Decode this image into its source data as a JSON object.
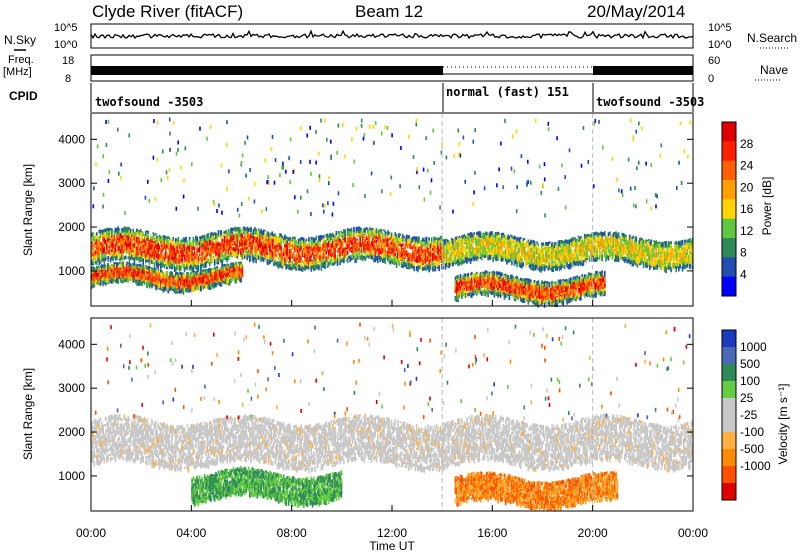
{
  "header": {
    "station": "Clyde River (fitACF)",
    "beam": "Beam 12",
    "date": "20/May/2014"
  },
  "nsky": {
    "label": "N.Sky",
    "tick_top": "10^5",
    "tick_bottom": "10^0",
    "right_label": "N.Search"
  },
  "freq": {
    "label": "Freq.",
    "unit": "[MHz]",
    "ticks_left": [
      "18",
      "8"
    ],
    "ticks_right": [
      "60",
      "0"
    ],
    "right_label": "Nave"
  },
  "cpid": {
    "label": "CPID",
    "segments": [
      {
        "name": "twofsound -3503",
        "start_h": 0,
        "end_h": 14
      },
      {
        "name": "normal (fast) 151",
        "start_h": 14,
        "end_h": 20
      },
      {
        "name": "twofsound -3503",
        "start_h": 20,
        "end_h": 24
      }
    ]
  },
  "colors": {
    "power": [
      "#0000ff",
      "#1f4fb0",
      "#2e8b57",
      "#5fc840",
      "#ffd400",
      "#ffa000",
      "#ff6000",
      "#ff2000",
      "#e00000"
    ],
    "velocity": [
      "#e00000",
      "#ff5000",
      "#ff8c00",
      "#ffb040",
      "#c8c8c8",
      "#c8c8c8",
      "#66cc44",
      "#2e8b57",
      "#4a6ab8",
      "#1c3ac0"
    ]
  },
  "chart_data": [
    {
      "type": "heatmap",
      "quantity": "Power",
      "xlabel": "",
      "ylabel": "Slant Range [km]",
      "xlim": [
        0,
        24
      ],
      "ylim": [
        200,
        4600
      ],
      "y_ticks": [
        1000,
        2000,
        3000,
        4000
      ],
      "colorbar": {
        "label": "Power [dB]",
        "ticks": [
          4,
          8,
          12,
          16,
          20,
          24,
          28
        ],
        "range": [
          0,
          32
        ]
      },
      "bands": [
        {
          "range_km": [
            1200,
            1900
          ],
          "level": "high",
          "span_h": [
            0,
            14
          ]
        },
        {
          "range_km": [
            700,
            1100
          ],
          "level": "high",
          "span_h": [
            0,
            6
          ]
        },
        {
          "range_km": [
            1200,
            1800
          ],
          "level": "medium",
          "span_h": [
            14,
            24
          ]
        },
        {
          "range_km": [
            400,
            900
          ],
          "level": "high",
          "span_h": [
            14.5,
            20.5
          ]
        }
      ]
    },
    {
      "type": "heatmap",
      "quantity": "Velocity",
      "xlabel": "Time UT",
      "ylabel": "Slant Range [km]",
      "xlim": [
        0,
        24
      ],
      "ylim": [
        200,
        4600
      ],
      "x_ticks": [
        "00:00",
        "04:00",
        "08:00",
        "12:00",
        "16:00",
        "20:00",
        "00:00"
      ],
      "y_ticks": [
        1000,
        2000,
        3000,
        4000
      ],
      "colorbar": {
        "label": "Velocity [m s⁻¹]",
        "ticks": [
          "1000",
          "500",
          "100",
          "25",
          "-25",
          "-100",
          "-500",
          "-1000"
        ]
      },
      "bands": [
        {
          "range_km": [
            1300,
            2300
          ],
          "velocity": "near zero",
          "span_h": [
            0,
            24
          ]
        },
        {
          "range_km": [
            500,
            1100
          ],
          "velocity": "positive",
          "span_h": [
            4,
            10
          ]
        },
        {
          "range_km": [
            400,
            1000
          ],
          "velocity": "negative",
          "span_h": [
            14.5,
            21
          ]
        }
      ]
    }
  ]
}
